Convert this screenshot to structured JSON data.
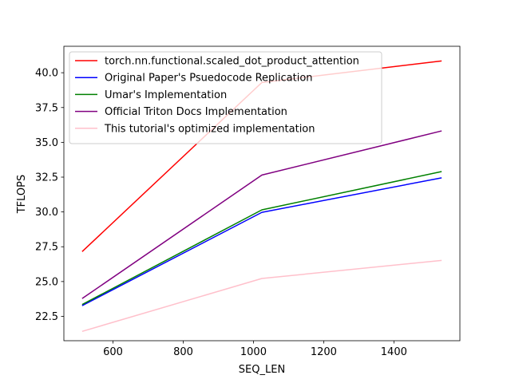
{
  "chart_data": {
    "type": "line",
    "title": "",
    "xlabel": "SEQ_LEN",
    "ylabel": "TFLOPS",
    "xlim": [
      460,
      1588
    ],
    "ylim": [
      20.75,
      41.9
    ],
    "xticks": [
      600,
      800,
      1000,
      1200,
      1400
    ],
    "xtick_labels": [
      "600",
      "800",
      "1000",
      "1200",
      "1400"
    ],
    "yticks": [
      22.5,
      25.0,
      27.5,
      30.0,
      32.5,
      35.0,
      37.5,
      40.0
    ],
    "ytick_labels": [
      "22.5",
      "25.0",
      "27.5",
      "30.0",
      "32.5",
      "35.0",
      "37.5",
      "40.0"
    ],
    "grid": false,
    "legend_position": "upper-left",
    "x": [
      512,
      1024,
      1536
    ],
    "series": [
      {
        "name": "torch.nn.functional.scaled_dot_product_attention",
        "color": "#ff0000",
        "values": [
          27.15,
          39.3,
          40.85
        ]
      },
      {
        "name": "Original Paper's Psuedocode Replication",
        "color": "#0000ff",
        "values": [
          23.27,
          29.97,
          32.45
        ]
      },
      {
        "name": "Umar's Implementation",
        "color": "#008000",
        "values": [
          23.35,
          30.15,
          32.9
        ]
      },
      {
        "name": "Official Triton Docs Implementation",
        "color": "#800080",
        "values": [
          23.78,
          32.65,
          35.82
        ]
      },
      {
        "name": "This tutorial's optimized implementation",
        "color": "#ffc0cb",
        "values": [
          21.42,
          25.22,
          26.52
        ]
      }
    ]
  }
}
